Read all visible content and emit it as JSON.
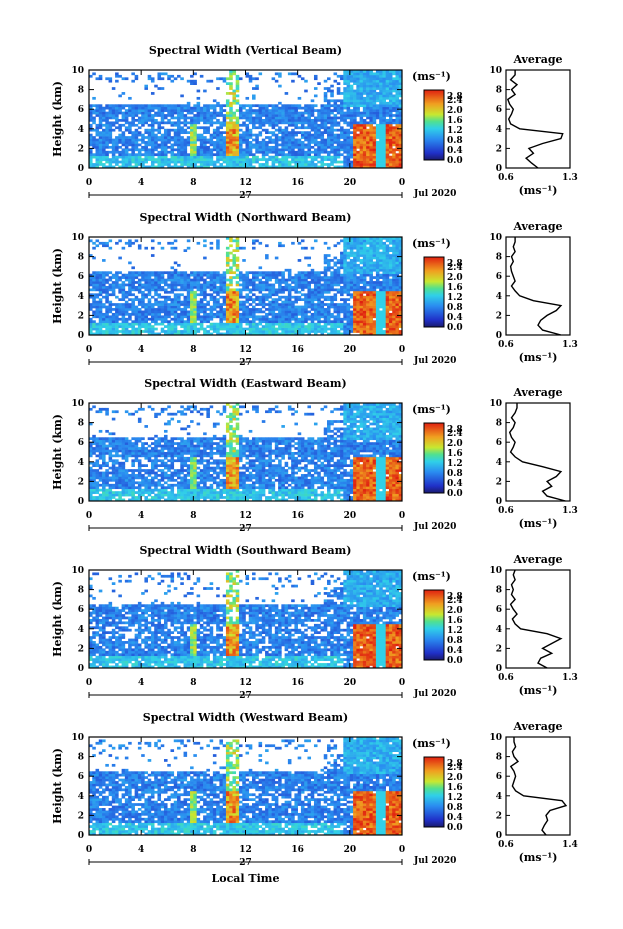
{
  "chart_data": [
    {
      "type": "heatmap",
      "title": "Spectral Width (Vertical Beam)",
      "ylabel": "Height (km)",
      "xlabel": "",
      "x_ticks": [
        "0",
        "4",
        "8",
        "12",
        "16",
        "20",
        "0"
      ],
      "y_ticks": [
        "0",
        "2",
        "4",
        "6",
        "8",
        "10"
      ],
      "xlim": [
        0,
        24
      ],
      "ylim": [
        0,
        10
      ],
      "date_day": "27",
      "date_month": "Jul 2020",
      "colorbar": {
        "unit": "(ms⁻¹)",
        "ticks": [
          "2.8",
          "2.4",
          "2.0",
          "1.6",
          "1.2",
          "0.8",
          "0.4",
          "0.0"
        ],
        "range": [
          0,
          2.8
        ]
      },
      "profile": {
        "title": "Average",
        "xlabel": "(ms⁻¹)",
        "x_ticks": [
          "0.6",
          "1.3"
        ],
        "xlim": [
          0.6,
          1.3
        ],
        "heights": [
          0,
          0.5,
          1,
          1.5,
          2,
          2.5,
          3,
          3.5,
          4,
          4.5,
          5,
          5.5,
          6,
          6.5,
          7,
          7.5,
          8,
          8.5,
          9,
          9.5,
          10
        ],
        "values": [
          0.95,
          0.88,
          0.82,
          0.9,
          0.85,
          1.0,
          1.2,
          1.22,
          0.75,
          0.65,
          0.63,
          0.66,
          0.68,
          0.64,
          0.62,
          0.7,
          0.66,
          0.72,
          0.65,
          0.7,
          0.7
        ]
      }
    },
    {
      "type": "heatmap",
      "title": "Spectral Width (Northward Beam)",
      "ylabel": "Height (km)",
      "xlabel": "",
      "x_ticks": [
        "0",
        "4",
        "8",
        "12",
        "16",
        "20",
        "0"
      ],
      "y_ticks": [
        "0",
        "2",
        "4",
        "6",
        "8",
        "10"
      ],
      "xlim": [
        0,
        24
      ],
      "ylim": [
        0,
        10
      ],
      "date_day": "27",
      "date_month": "Jul 2020",
      "colorbar": {
        "unit": "(ms⁻¹)",
        "ticks": [
          "2.8",
          "2.4",
          "2.0",
          "1.6",
          "1.2",
          "0.8",
          "0.4",
          "0.0"
        ],
        "range": [
          0,
          2.8
        ]
      },
      "profile": {
        "title": "Average",
        "xlabel": "(ms⁻¹)",
        "x_ticks": [
          "0.6",
          "1.3"
        ],
        "xlim": [
          0.6,
          1.3
        ],
        "heights": [
          0,
          0.5,
          1,
          1.5,
          2,
          2.5,
          3,
          3.5,
          4,
          4.5,
          5,
          5.5,
          6,
          6.5,
          7,
          7.5,
          8,
          8.5,
          9,
          9.5,
          10
        ],
        "values": [
          1.2,
          1.0,
          0.95,
          0.98,
          1.05,
          1.15,
          1.2,
          0.9,
          0.75,
          0.7,
          0.66,
          0.7,
          0.68,
          0.66,
          0.65,
          0.68,
          0.66,
          0.7,
          0.68,
          0.7,
          0.7
        ]
      }
    },
    {
      "type": "heatmap",
      "title": "Spectral Width (Eastward Beam)",
      "ylabel": "Height (km)",
      "xlabel": "",
      "x_ticks": [
        "0",
        "4",
        "8",
        "12",
        "16",
        "20",
        "0"
      ],
      "y_ticks": [
        "0",
        "2",
        "4",
        "6",
        "8",
        "10"
      ],
      "xlim": [
        0,
        24
      ],
      "ylim": [
        0,
        10
      ],
      "date_day": "27",
      "date_month": "Jul 2020",
      "colorbar": {
        "unit": "(ms⁻¹)",
        "ticks": [
          "2.8",
          "2.4",
          "2.0",
          "1.6",
          "1.2",
          "0.8",
          "0.4",
          "0.0"
        ],
        "range": [
          0,
          2.8
        ]
      },
      "profile": {
        "title": "Average",
        "xlabel": "(ms⁻¹)",
        "x_ticks": [
          "0.6",
          "1.3"
        ],
        "xlim": [
          0.6,
          1.3
        ],
        "heights": [
          0,
          0.5,
          1,
          1.5,
          2,
          2.5,
          3,
          3.5,
          4,
          4.5,
          5,
          5.5,
          6,
          6.5,
          7,
          7.5,
          8,
          8.5,
          9,
          9.5,
          10
        ],
        "values": [
          1.25,
          1.05,
          1.0,
          1.1,
          1.05,
          1.15,
          1.2,
          1.0,
          0.78,
          0.7,
          0.65,
          0.68,
          0.7,
          0.66,
          0.64,
          0.68,
          0.7,
          0.66,
          0.7,
          0.72,
          0.72
        ]
      }
    },
    {
      "type": "heatmap",
      "title": "Spectral Width (Southward Beam)",
      "ylabel": "Height (km)",
      "xlabel": "",
      "x_ticks": [
        "0",
        "4",
        "8",
        "12",
        "16",
        "20",
        "0"
      ],
      "y_ticks": [
        "0",
        "2",
        "4",
        "6",
        "8",
        "10"
      ],
      "xlim": [
        0,
        24
      ],
      "ylim": [
        0,
        10
      ],
      "date_day": "27",
      "date_month": "Jul 2020",
      "colorbar": {
        "unit": "(ms⁻¹)",
        "ticks": [
          "2.8",
          "2.4",
          "2.0",
          "1.6",
          "1.2",
          "0.8",
          "0.4",
          "0.0"
        ],
        "range": [
          0,
          2.8
        ]
      },
      "profile": {
        "title": "Average",
        "xlabel": "(ms⁻¹)",
        "x_ticks": [
          "0.6",
          "1.3"
        ],
        "xlim": [
          0.6,
          1.3
        ],
        "heights": [
          0,
          0.5,
          1,
          1.5,
          2,
          2.5,
          3,
          3.5,
          4,
          4.5,
          5,
          5.5,
          6,
          6.5,
          7,
          7.5,
          8,
          8.5,
          9,
          9.5,
          10
        ],
        "values": [
          1.05,
          0.95,
          0.98,
          1.1,
          1.0,
          1.1,
          1.2,
          1.05,
          0.76,
          0.7,
          0.67,
          0.72,
          0.68,
          0.65,
          0.7,
          0.66,
          0.68,
          0.66,
          0.7,
          0.68,
          0.7
        ]
      }
    },
    {
      "type": "heatmap",
      "title": "Spectral Width (Westward Beam)",
      "ylabel": "Height (km)",
      "xlabel": "Local Time",
      "x_ticks": [
        "0",
        "4",
        "8",
        "12",
        "16",
        "20",
        "0"
      ],
      "y_ticks": [
        "0",
        "2",
        "4",
        "6",
        "8",
        "10"
      ],
      "xlim": [
        0,
        24
      ],
      "ylim": [
        0,
        10
      ],
      "date_day": "27",
      "date_month": "Jul 2020",
      "colorbar": {
        "unit": "(ms⁻¹)",
        "ticks": [
          "2.8",
          "2.4",
          "2.0",
          "1.6",
          "1.2",
          "0.8",
          "0.4",
          "0.0"
        ],
        "range": [
          0,
          2.8
        ]
      },
      "profile": {
        "title": "Average",
        "xlabel": "(ms⁻¹)",
        "x_ticks": [
          "0.6",
          "1.4"
        ],
        "xlim": [
          0.6,
          1.4
        ],
        "heights": [
          0,
          0.5,
          1,
          1.5,
          2,
          2.5,
          3,
          3.5,
          4,
          4.5,
          5,
          5.5,
          6,
          6.5,
          7,
          7.5,
          8,
          8.5,
          9,
          9.5,
          10
        ],
        "values": [
          1.1,
          1.05,
          1.08,
          1.12,
          1.1,
          1.15,
          1.35,
          1.3,
          0.82,
          0.72,
          0.68,
          0.7,
          0.72,
          0.7,
          0.66,
          0.75,
          0.7,
          0.68,
          0.72,
          0.7,
          0.7
        ]
      }
    }
  ]
}
